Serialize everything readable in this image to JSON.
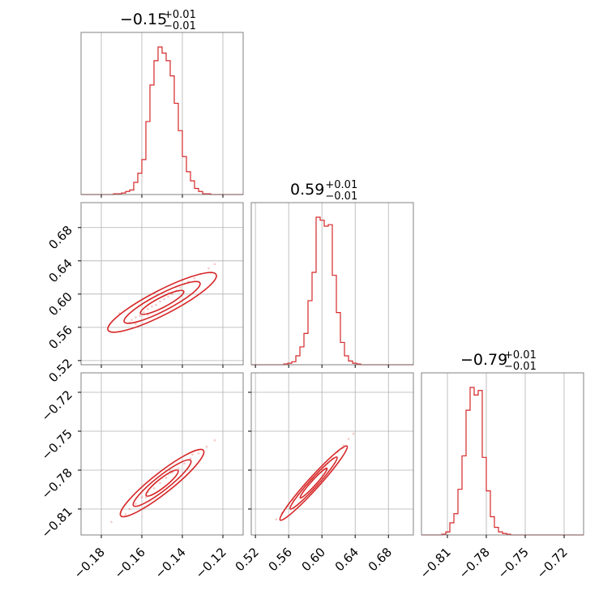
{
  "chart_data": {
    "type": "corner",
    "color": "#d62728",
    "grid": true,
    "parameters": [
      {
        "title_main": "−0.15",
        "title_sup": "+0.01",
        "title_sub": "−0.01",
        "median": -0.15,
        "sd": 0.004,
        "range": [
          -0.19,
          -0.11
        ],
        "ticks": [
          -0.18,
          -0.16,
          -0.14,
          -0.12
        ],
        "tick_labels": [
          "−0.18",
          "−0.16",
          "−0.14",
          "−0.12"
        ],
        "hist": [
          0,
          0,
          0,
          0,
          0,
          0,
          0,
          0,
          0.005,
          0.005,
          0.01,
          0.02,
          0.03,
          0.08,
          0.14,
          0.23,
          0.48,
          0.72,
          0.88,
          0.97,
          0.93,
          0.88,
          0.78,
          0.6,
          0.42,
          0.25,
          0.15,
          0.09,
          0.04,
          0.02,
          0.005,
          0.005,
          0,
          0,
          0,
          0,
          0,
          0,
          0,
          0
        ]
      },
      {
        "title_main": "0.59",
        "title_sup": "+0.01",
        "title_sub": "−0.01",
        "median": 0.59,
        "sd": 0.012,
        "range": [
          0.515,
          0.71
        ],
        "ticks": [
          0.52,
          0.56,
          0.6,
          0.64,
          0.68
        ],
        "tick_labels": [
          "0.52",
          "0.56",
          "0.60",
          "0.64",
          "0.68"
        ],
        "hist": [
          0,
          0,
          0,
          0,
          0,
          0,
          0,
          0,
          0.005,
          0.01,
          0.02,
          0.06,
          0.12,
          0.21,
          0.43,
          0.62,
          0.99,
          0.97,
          0.93,
          0.94,
          0.6,
          0.35,
          0.15,
          0.06,
          0.025,
          0.01,
          0.005,
          0,
          0,
          0,
          0,
          0,
          0,
          0,
          0,
          0,
          0,
          0,
          0,
          0
        ]
      },
      {
        "title_main": "−0.79",
        "title_sup": "+0.01",
        "title_sub": "−0.01",
        "median": -0.79,
        "sd": 0.006,
        "range": [
          -0.83,
          -0.705
        ],
        "ticks": [
          -0.81,
          -0.78,
          -0.75,
          -0.72
        ],
        "tick_labels": [
          "−0.81",
          "−0.78",
          "−0.75",
          "−0.72"
        ],
        "hist": [
          0,
          0,
          0,
          0,
          0,
          0.005,
          0.02,
          0.08,
          0.14,
          0.3,
          0.52,
          0.82,
          0.97,
          0.92,
          0.95,
          0.51,
          0.29,
          0.12,
          0.05,
          0.02,
          0.01,
          0.005,
          0,
          0,
          0,
          0,
          0,
          0,
          0,
          0,
          0,
          0,
          0,
          0,
          0,
          0,
          0,
          0,
          0,
          0
        ]
      }
    ],
    "pair_samples": [
      {
        "row": 1,
        "col": 0,
        "points": [
          [
            -0.171,
            0.577
          ],
          [
            -0.166,
            0.566
          ],
          [
            -0.165,
            0.569
          ],
          [
            -0.163,
            0.572
          ],
          [
            -0.161,
            0.574
          ],
          [
            -0.159,
            0.578
          ],
          [
            -0.157,
            0.582
          ],
          [
            -0.155,
            0.585
          ],
          [
            -0.153,
            0.587
          ],
          [
            -0.151,
            0.591
          ],
          [
            -0.149,
            0.594
          ],
          [
            -0.147,
            0.597
          ],
          [
            -0.145,
            0.6
          ],
          [
            -0.143,
            0.604
          ],
          [
            -0.141,
            0.608
          ],
          [
            -0.139,
            0.612
          ],
          [
            -0.137,
            0.615
          ],
          [
            -0.134,
            0.619
          ],
          [
            -0.131,
            0.624
          ],
          [
            -0.127,
            0.631
          ],
          [
            -0.124,
            0.636
          ],
          [
            -0.163,
            0.564
          ],
          [
            -0.157,
            0.575
          ],
          [
            -0.147,
            0.601
          ],
          [
            -0.14,
            0.617
          ]
        ],
        "contours": [
          {
            "semi_major": 0.012,
            "semi_minor": 0.0025
          },
          {
            "semi_major": 0.021,
            "semi_minor": 0.0042
          },
          {
            "semi_major": 0.03,
            "semi_minor": 0.006
          }
        ]
      },
      {
        "row": 2,
        "col": 0,
        "points": [
          [
            -0.175,
            -0.82
          ],
          [
            -0.17,
            -0.816
          ],
          [
            -0.166,
            -0.81
          ],
          [
            -0.163,
            -0.806
          ],
          [
            -0.16,
            -0.801
          ],
          [
            -0.157,
            -0.797
          ],
          [
            -0.154,
            -0.794
          ],
          [
            -0.151,
            -0.79
          ],
          [
            -0.148,
            -0.786
          ],
          [
            -0.145,
            -0.782
          ],
          [
            -0.142,
            -0.779
          ],
          [
            -0.139,
            -0.775
          ],
          [
            -0.136,
            -0.771
          ],
          [
            -0.132,
            -0.767
          ],
          [
            -0.128,
            -0.762
          ],
          [
            -0.124,
            -0.757
          ],
          [
            -0.168,
            -0.814
          ],
          [
            -0.158,
            -0.801
          ],
          [
            -0.146,
            -0.781
          ],
          [
            -0.135,
            -0.768
          ]
        ],
        "contours": [
          {
            "semi_major": 0.01,
            "semi_minor": 0.0022
          },
          {
            "semi_major": 0.018,
            "semi_minor": 0.0035
          },
          {
            "semi_major": 0.026,
            "semi_minor": 0.005
          }
        ]
      },
      {
        "row": 2,
        "col": 1,
        "points": [
          [
            0.545,
            -0.818
          ],
          [
            0.552,
            -0.813
          ],
          [
            0.558,
            -0.808
          ],
          [
            0.565,
            -0.803
          ],
          [
            0.571,
            -0.799
          ],
          [
            0.577,
            -0.795
          ],
          [
            0.583,
            -0.791
          ],
          [
            0.589,
            -0.787
          ],
          [
            0.595,
            -0.783
          ],
          [
            0.601,
            -0.779
          ],
          [
            0.607,
            -0.775
          ],
          [
            0.613,
            -0.771
          ],
          [
            0.619,
            -0.766
          ],
          [
            0.626,
            -0.761
          ],
          [
            0.632,
            -0.756
          ],
          [
            0.638,
            -0.752
          ],
          [
            0.56,
            -0.806
          ],
          [
            0.58,
            -0.792
          ],
          [
            0.604,
            -0.777
          ],
          [
            0.625,
            -0.763
          ]
        ],
        "contours": [
          {
            "semi_major": 0.024,
            "semi_minor": 0.003
          },
          {
            "semi_major": 0.042,
            "semi_minor": 0.005
          },
          {
            "semi_major": 0.06,
            "semi_minor": 0.007
          }
        ]
      }
    ]
  }
}
